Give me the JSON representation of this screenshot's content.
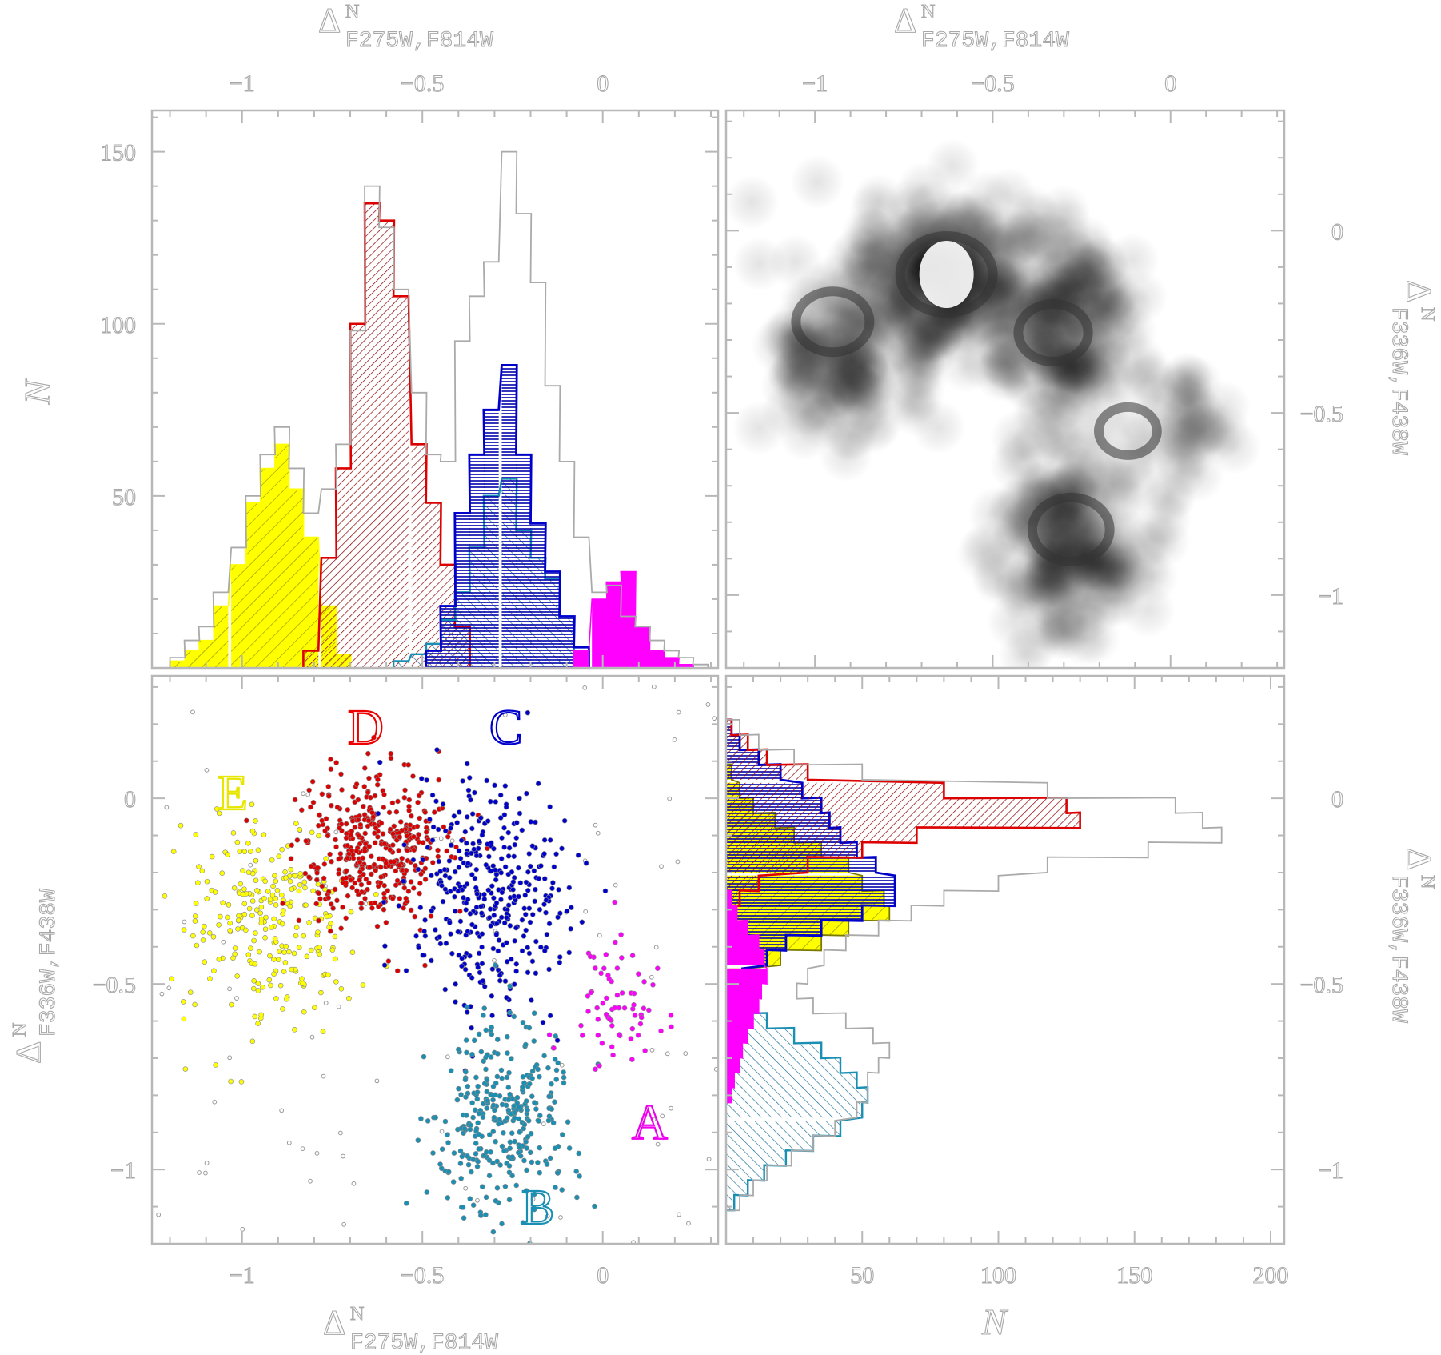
{
  "axes": {
    "x_top_label": "Δ",
    "x_top_sup": "N",
    "x_top_sub": "F275W,F814W",
    "x_bottom_label": "Δ",
    "x_bottom_sup": "N",
    "x_bottom_sub": "F275W,F814W",
    "y_left_hist_label": "N",
    "y_left_scatter_label": "Δ",
    "y_left_scatter_sup": "N",
    "y_left_scatter_sub": "F336W,F438W",
    "y_right_label": "Δ",
    "y_right_sup": "N",
    "y_right_sub": "F336W,F438W",
    "x_right_hist_label": "N"
  },
  "colors": {
    "A": "#ff00ff",
    "B": "#1a8fb4",
    "C": "#0000cc",
    "D": "#dd0000",
    "E": "#ffff00",
    "all": "#aaaaaa"
  },
  "chart_data": [
    {
      "panel": "top-left",
      "type": "bar",
      "xlabel": "ΔN F275W,F814W",
      "ylabel": "N",
      "xlim": [
        -1.25,
        0.32
      ],
      "ylim": [
        0,
        162
      ],
      "xticks": [
        -1,
        -0.5,
        0
      ],
      "xtick_labels": [
        "−1",
        "−0.5",
        "0"
      ],
      "yticks": [
        50,
        100,
        150
      ],
      "ytick_labels": [
        "50",
        "100",
        "150"
      ],
      "bin_width": 0.0417,
      "series": [
        {
          "name": "E",
          "x0": [
            -1.2,
            -1.16,
            -1.12,
            -1.08,
            -1.03,
            -0.99,
            -0.95,
            -0.91,
            -0.87,
            -0.83,
            -0.78,
            -0.74
          ],
          "values": [
            2,
            5,
            8,
            18,
            30,
            48,
            58,
            65,
            52,
            38,
            18,
            4
          ]
        },
        {
          "name": "D",
          "x0": [
            -0.83,
            -0.78,
            -0.74,
            -0.7,
            -0.66,
            -0.62,
            -0.58,
            -0.53,
            -0.49,
            -0.45,
            -0.41
          ],
          "values": [
            5,
            32,
            58,
            100,
            135,
            130,
            108,
            65,
            48,
            30,
            12
          ]
        },
        {
          "name": "C",
          "x0": [
            -0.49,
            -0.45,
            -0.41,
            -0.37,
            -0.33,
            -0.28,
            -0.24,
            -0.2,
            -0.16,
            -0.12,
            -0.08
          ],
          "values": [
            5,
            18,
            45,
            62,
            75,
            88,
            62,
            42,
            28,
            15,
            6
          ]
        },
        {
          "name": "B",
          "x0": [
            -0.58,
            -0.53,
            -0.49,
            -0.45,
            -0.41,
            -0.37,
            -0.33,
            -0.28,
            -0.24,
            -0.2,
            -0.16,
            -0.12,
            -0.08
          ],
          "values": [
            2,
            4,
            7,
            14,
            22,
            35,
            50,
            55,
            40,
            32,
            26,
            15,
            5
          ]
        },
        {
          "name": "A",
          "x0": [
            -0.08,
            -0.03,
            0.01,
            0.05,
            0.09,
            0.13,
            0.17,
            0.21
          ],
          "values": [
            5,
            20,
            25,
            28,
            12,
            5,
            3,
            1
          ]
        },
        {
          "name": "all",
          "x0": [
            -1.2,
            -1.16,
            -1.12,
            -1.08,
            -1.03,
            -0.99,
            -0.95,
            -0.91,
            -0.87,
            -0.83,
            -0.78,
            -0.74,
            -0.7,
            -0.66,
            -0.62,
            -0.58,
            -0.53,
            -0.49,
            -0.45,
            -0.41,
            -0.37,
            -0.33,
            -0.28,
            -0.24,
            -0.2,
            -0.16,
            -0.12,
            -0.08,
            -0.03,
            0.01,
            0.05,
            0.09,
            0.13,
            0.17,
            0.21,
            0.25
          ],
          "values": [
            3,
            8,
            12,
            22,
            35,
            50,
            62,
            70,
            58,
            45,
            52,
            65,
            98,
            140,
            128,
            110,
            80,
            62,
            60,
            95,
            108,
            118,
            150,
            132,
            112,
            82,
            60,
            38,
            22,
            24,
            15,
            12,
            8,
            5,
            3,
            1
          ]
        }
      ]
    },
    {
      "panel": "top-right",
      "type": "heatmap",
      "xlabel": "ΔN F275W,F814W",
      "ylabel": "ΔN F336W,F438W",
      "xlim": [
        -1.25,
        0.32
      ],
      "ylim": [
        -1.2,
        0.33
      ],
      "xticks": [
        -1,
        -0.5,
        0
      ],
      "xtick_labels": [
        "−1",
        "−0.5",
        "0"
      ],
      "yticks": [
        0,
        -0.5,
        -1
      ],
      "ytick_labels": [
        "0",
        "−0.5",
        "−1"
      ],
      "density_peaks": [
        {
          "x": -0.63,
          "y": -0.12,
          "weight": 1.0
        },
        {
          "x": -0.95,
          "y": -0.25,
          "weight": 0.75
        },
        {
          "x": -0.33,
          "y": -0.28,
          "weight": 0.7
        },
        {
          "x": -0.28,
          "y": -0.82,
          "weight": 0.8
        },
        {
          "x": -0.12,
          "y": -0.55,
          "weight": 0.55
        }
      ]
    },
    {
      "panel": "bottom-left",
      "type": "scatter",
      "xlabel": "ΔN F275W,F814W",
      "ylabel": "ΔN F336W,F438W",
      "xlim": [
        -1.25,
        0.32
      ],
      "ylim": [
        -1.2,
        0.33
      ],
      "xticks": [
        -1,
        -0.5,
        0
      ],
      "xtick_labels": [
        "−1",
        "−0.5",
        "0"
      ],
      "yticks": [
        0,
        -0.5,
        -1
      ],
      "ytick_labels": [
        "0",
        "−0.5",
        "−1"
      ],
      "groups": [
        {
          "name": "E",
          "label": "E",
          "center": [
            -0.93,
            -0.33
          ],
          "spread": [
            0.12,
            0.14
          ],
          "n": 260
        },
        {
          "name": "D",
          "label": "D",
          "center": [
            -0.64,
            -0.13
          ],
          "spread": [
            0.1,
            0.1
          ],
          "n": 420
        },
        {
          "name": "C",
          "label": "C",
          "center": [
            -0.31,
            -0.27
          ],
          "spread": [
            0.11,
            0.16
          ],
          "n": 380
        },
        {
          "name": "B",
          "label": "B",
          "center": [
            -0.28,
            -0.85
          ],
          "spread": [
            0.1,
            0.12
          ],
          "n": 330
        },
        {
          "name": "A",
          "label": "A",
          "center": [
            0.03,
            -0.55
          ],
          "spread": [
            0.06,
            0.09
          ],
          "n": 70
        }
      ]
    },
    {
      "panel": "bottom-right",
      "type": "bar",
      "orientation": "horizontal",
      "xlabel": "N",
      "ylabel": "ΔN F336W,F438W",
      "xlim": [
        0,
        205
      ],
      "ylim": [
        -1.2,
        0.33
      ],
      "xticks": [
        50,
        100,
        150,
        200
      ],
      "xtick_labels": [
        "50",
        "100",
        "150",
        "200"
      ],
      "yticks": [
        0,
        -0.5,
        -1
      ],
      "ytick_labels": [
        "0",
        "−0.5",
        "−1"
      ],
      "bin_width": 0.0417,
      "series": [
        {
          "name": "D",
          "y0": [
            0.17,
            0.13,
            0.09,
            0.05,
            0.0,
            -0.04,
            -0.08,
            -0.12,
            -0.16,
            -0.2,
            -0.25,
            -0.29,
            -0.33
          ],
          "values": [
            2,
            8,
            15,
            30,
            80,
            125,
            130,
            70,
            50,
            30,
            12,
            5,
            2
          ]
        },
        {
          "name": "C",
          "y0": [
            0.17,
            0.13,
            0.09,
            0.05,
            0.0,
            -0.04,
            -0.08,
            -0.12,
            -0.16,
            -0.2,
            -0.25,
            -0.29,
            -0.33,
            -0.37,
            -0.41,
            -0.45,
            -0.5
          ],
          "values": [
            2,
            5,
            12,
            20,
            28,
            35,
            38,
            42,
            48,
            55,
            62,
            62,
            50,
            35,
            22,
            15,
            6
          ]
        },
        {
          "name": "E",
          "y0": [
            0.05,
            0.0,
            -0.04,
            -0.08,
            -0.12,
            -0.16,
            -0.2,
            -0.25,
            -0.29,
            -0.33,
            -0.37,
            -0.41,
            -0.45,
            -0.5
          ],
          "values": [
            2,
            5,
            10,
            18,
            25,
            35,
            45,
            50,
            58,
            60,
            45,
            35,
            20,
            8
          ]
        },
        {
          "name": "B",
          "y0": [
            -0.58,
            -0.62,
            -0.66,
            -0.7,
            -0.74,
            -0.78,
            -0.82,
            -0.86,
            -0.91,
            -0.95,
            -0.99,
            -1.03,
            -1.07,
            -1.11
          ],
          "values": [
            5,
            15,
            25,
            35,
            42,
            48,
            52,
            50,
            42,
            32,
            22,
            14,
            8,
            3
          ]
        },
        {
          "name": "A",
          "y0": [
            -0.29,
            -0.33,
            -0.37,
            -0.41,
            -0.45,
            -0.5,
            -0.54,
            -0.58,
            -0.62,
            -0.66,
            -0.7,
            -0.74,
            -0.78,
            -0.82
          ],
          "values": [
            2,
            4,
            8,
            12,
            14,
            15,
            13,
            12,
            10,
            8,
            6,
            5,
            3,
            2
          ]
        },
        {
          "name": "all",
          "y0": [
            0.17,
            0.13,
            0.09,
            0.05,
            0.0,
            -0.04,
            -0.08,
            -0.12,
            -0.16,
            -0.2,
            -0.25,
            -0.29,
            -0.33,
            -0.37,
            -0.41,
            -0.45,
            -0.5,
            -0.54,
            -0.58,
            -0.62,
            -0.66,
            -0.7,
            -0.74,
            -0.78,
            -0.82,
            -0.86,
            -0.91,
            -0.95,
            -0.99,
            -1.03,
            -1.07,
            -1.11
          ],
          "values": [
            5,
            12,
            25,
            50,
            118,
            165,
            175,
            182,
            155,
            118,
            100,
            80,
            68,
            56,
            44,
            36,
            30,
            26,
            32,
            44,
            54,
            60,
            56,
            52,
            52,
            48,
            40,
            32,
            24,
            15,
            10,
            5
          ]
        }
      ]
    }
  ]
}
